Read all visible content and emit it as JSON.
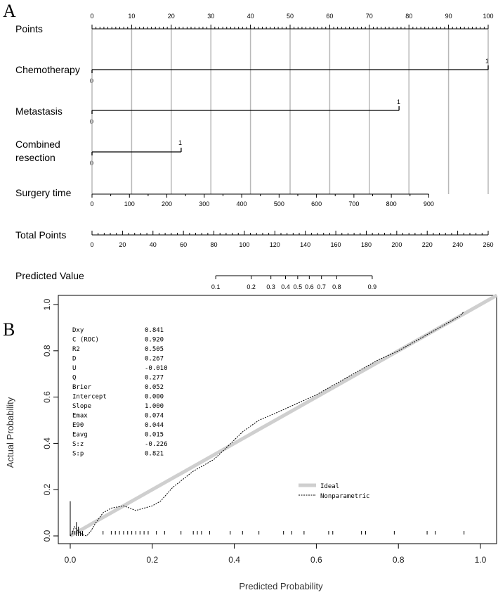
{
  "panel_a": {
    "letter": "A",
    "points_label": "Points",
    "points_ticks": [
      "0",
      "10",
      "20",
      "30",
      "40",
      "50",
      "60",
      "70",
      "80",
      "90",
      "100"
    ],
    "chemotherapy": {
      "label": "Chemotherapy",
      "level0": "0",
      "level1": "1",
      "points": 100
    },
    "metastasis": {
      "label": "Metastasis",
      "level0": "0",
      "level1": "1",
      "points": 77.5
    },
    "combined_resection": {
      "label_line1": "Combined",
      "label_line2": "resection",
      "level0": "0",
      "level1": "1",
      "points": 22.5
    },
    "surgery_time": {
      "label": "Surgery time",
      "ticks": [
        "0",
        "100",
        "200",
        "300",
        "400",
        "500",
        "600",
        "700",
        "800",
        "900"
      ],
      "max_value": 900,
      "points_at_max": 85
    },
    "total_points": {
      "label": "Total Points",
      "ticks": [
        "0",
        "20",
        "40",
        "60",
        "80",
        "100",
        "120",
        "140",
        "160",
        "180",
        "200",
        "220",
        "240",
        "260"
      ],
      "max_value": 260
    },
    "predicted_value": {
      "label": "Predicted Value",
      "ticks": [
        "0.1",
        "0.2",
        "0.3",
        "0.4",
        "0.5",
        "0.6",
        "0.7",
        "0.8",
        "0.9"
      ],
      "total_points_at_ticks": [
        81.2,
        104.5,
        117.4,
        127.0,
        135.0,
        142.6,
        150.6,
        160.6,
        183.9
      ]
    }
  },
  "panel_b": {
    "letter": "B",
    "stats": [
      {
        "name": "Dxy",
        "value": "0.841"
      },
      {
        "name": "C (ROC)",
        "value": "0.920"
      },
      {
        "name": "R2",
        "value": "0.505"
      },
      {
        "name": "D",
        "value": "0.267"
      },
      {
        "name": "U",
        "value": "-0.010"
      },
      {
        "name": "Q",
        "value": "0.277"
      },
      {
        "name": "Brier",
        "value": "0.052"
      },
      {
        "name": "Intercept",
        "value": "0.000"
      },
      {
        "name": "Slope",
        "value": "1.000"
      },
      {
        "name": "Emax",
        "value": "0.074"
      },
      {
        "name": "E90",
        "value": "0.044"
      },
      {
        "name": "Eavg",
        "value": "0.015"
      },
      {
        "name": "S:z",
        "value": "-0.226"
      },
      {
        "name": "S:p",
        "value": "0.821"
      }
    ],
    "legend": {
      "ideal": "Ideal",
      "nonparametric": "Nonparametric"
    },
    "xlabel": "Predicted Probability",
    "ylabel": "Actual Probability",
    "xticks": [
      "0.0",
      "0.2",
      "0.4",
      "0.6",
      "0.8",
      "1.0"
    ],
    "yticks": [
      "0.0",
      "0.2",
      "0.4",
      "0.6",
      "0.8",
      "1.0"
    ]
  },
  "chart_data": [
    {
      "type": "nomogram",
      "title": "",
      "axes": [
        {
          "name": "Points",
          "range": [
            0,
            100
          ]
        },
        {
          "name": "Chemotherapy",
          "levels": [
            "0",
            "1"
          ],
          "points": [
            0,
            100
          ]
        },
        {
          "name": "Metastasis",
          "levels": [
            "0",
            "1"
          ],
          "points": [
            0,
            77.5
          ]
        },
        {
          "name": "Combined resection",
          "levels": [
            "0",
            "1"
          ],
          "points": [
            0,
            22.5
          ]
        },
        {
          "name": "Surgery time",
          "range": [
            0,
            900
          ],
          "points_range": [
            0,
            85
          ]
        },
        {
          "name": "Total Points",
          "range": [
            0,
            260
          ]
        },
        {
          "name": "Predicted Value",
          "values": [
            0.1,
            0.2,
            0.3,
            0.4,
            0.5,
            0.6,
            0.7,
            0.8,
            0.9
          ]
        }
      ]
    },
    {
      "type": "line",
      "title": "",
      "xlabel": "Predicted Probability",
      "ylabel": "Actual Probability",
      "xlim": [
        -0.03,
        1.04
      ],
      "ylim": [
        -0.02,
        1.04
      ],
      "series": [
        {
          "name": "Ideal",
          "x": [
            0,
            1.04
          ],
          "y": [
            0,
            1.04
          ]
        },
        {
          "name": "Nonparametric",
          "x": [
            0.0,
            0.005,
            0.01,
            0.015,
            0.02,
            0.03,
            0.04,
            0.05,
            0.06,
            0.08,
            0.1,
            0.13,
            0.16,
            0.18,
            0.2,
            0.22,
            0.25,
            0.3,
            0.35,
            0.38,
            0.42,
            0.46,
            0.5,
            0.55,
            0.6,
            0.65,
            0.7,
            0.75,
            0.8,
            0.85,
            0.9,
            0.95,
            0.96
          ],
          "y": [
            0.0,
            0.01,
            0.04,
            0.03,
            0.02,
            0.005,
            0.0,
            0.02,
            0.05,
            0.1,
            0.12,
            0.13,
            0.11,
            0.12,
            0.13,
            0.15,
            0.21,
            0.28,
            0.33,
            0.38,
            0.45,
            0.5,
            0.53,
            0.57,
            0.61,
            0.66,
            0.71,
            0.76,
            0.8,
            0.85,
            0.9,
            0.95,
            0.97
          ]
        }
      ],
      "rug_x": [
        0.005,
        0.01,
        0.015,
        0.02,
        0.03,
        0.08,
        0.1,
        0.11,
        0.12,
        0.13,
        0.14,
        0.15,
        0.16,
        0.17,
        0.18,
        0.19,
        0.21,
        0.23,
        0.27,
        0.3,
        0.31,
        0.32,
        0.34,
        0.39,
        0.42,
        0.46,
        0.52,
        0.54,
        0.57,
        0.63,
        0.64,
        0.71,
        0.72,
        0.79,
        0.87,
        0.89,
        0.96
      ],
      "spike_heights": [
        0.15,
        0.06,
        0.04,
        0.02,
        0.01
      ]
    }
  ]
}
